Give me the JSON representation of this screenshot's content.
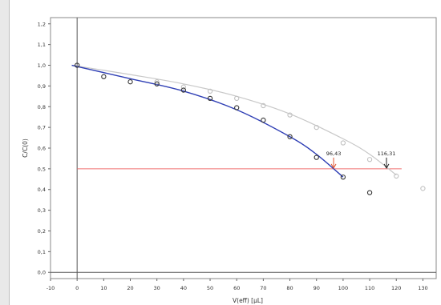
{
  "chart_data": {
    "type": "scatter",
    "title": "",
    "xlabel": "V(eff) [µL]",
    "ylabel": "C/C(0)",
    "xlim": [
      -10,
      135
    ],
    "ylim": [
      -0.03,
      1.23
    ],
    "x_ticks": [
      "-10",
      "0",
      "10",
      "20",
      "30",
      "40",
      "50",
      "60",
      "70",
      "80",
      "90",
      "100",
      "110",
      "120",
      "130"
    ],
    "y_ticks": [
      "0,0",
      "0,1",
      "0,2",
      "0,3",
      "0,4",
      "0,5",
      "0,6",
      "0,7",
      "0,8",
      "0,9",
      "1,0",
      "1,1",
      "1,2"
    ],
    "grid": false,
    "series": [
      {
        "color": "#2f3fb5",
        "marker_color": "#333333",
        "points": [
          [
            0,
            1.0
          ],
          [
            10,
            0.945
          ],
          [
            20,
            0.92
          ],
          [
            30,
            0.91
          ],
          [
            40,
            0.88
          ],
          [
            50,
            0.84
          ],
          [
            60,
            0.795
          ],
          [
            70,
            0.735
          ],
          [
            80,
            0.655
          ],
          [
            90,
            0.555
          ],
          [
            100,
            0.46
          ],
          [
            110,
            0.385
          ]
        ],
        "fit_curve": [
          [
            -2,
            1.0
          ],
          [
            20,
            0.935
          ],
          [
            40,
            0.875
          ],
          [
            60,
            0.785
          ],
          [
            80,
            0.655
          ],
          [
            90,
            0.57
          ],
          [
            100,
            0.46
          ]
        ]
      },
      {
        "color": "#c8c8c8",
        "marker_color": "#c0c0c0",
        "points": [
          [
            30,
            0.92
          ],
          [
            40,
            0.895
          ],
          [
            50,
            0.875
          ],
          [
            60,
            0.84
          ],
          [
            70,
            0.805
          ],
          [
            80,
            0.76
          ],
          [
            90,
            0.7
          ],
          [
            100,
            0.625
          ],
          [
            110,
            0.545
          ],
          [
            120,
            0.465
          ],
          [
            130,
            0.405
          ]
        ],
        "fit_curve": [
          [
            -2,
            1.0
          ],
          [
            20,
            0.955
          ],
          [
            40,
            0.91
          ],
          [
            60,
            0.85
          ],
          [
            80,
            0.765
          ],
          [
            100,
            0.645
          ],
          [
            110,
            0.57
          ],
          [
            120,
            0.47
          ]
        ]
      }
    ],
    "threshold": {
      "y": 0.5,
      "x_start": 0,
      "x_end": 122,
      "color": "#f07070"
    },
    "annotations": [
      {
        "label": "96,43",
        "x": 96.43,
        "y": 0.5,
        "color": "#e05530"
      },
      {
        "label": "116,31",
        "x": 116.31,
        "y": 0.5,
        "color": "#222222"
      }
    ],
    "zero_lines": {
      "x": 0,
      "y": 0
    }
  }
}
